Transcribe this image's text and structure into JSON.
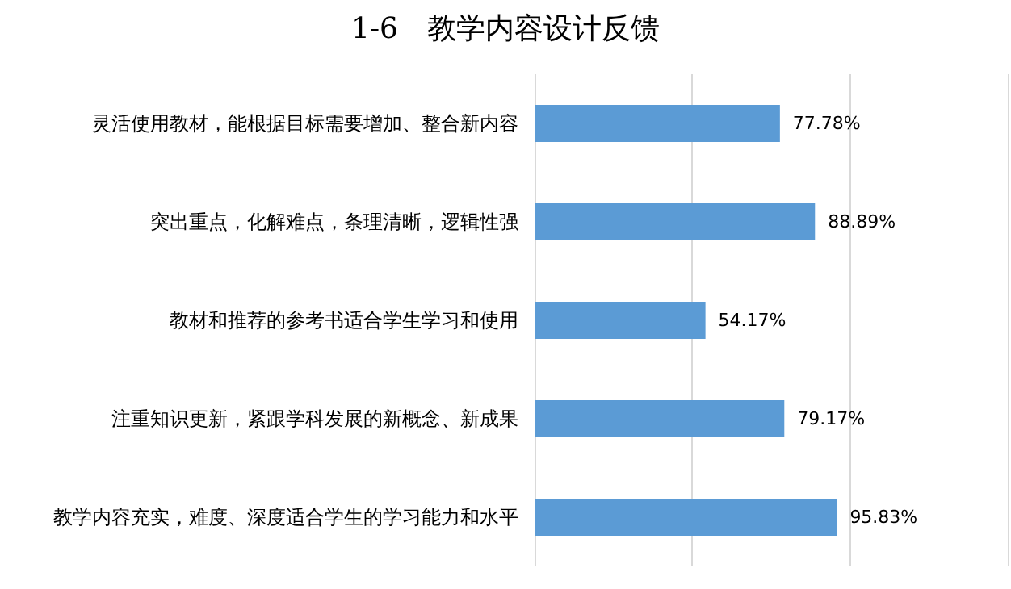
{
  "chart_data": {
    "type": "bar",
    "orientation": "horizontal",
    "title": "1-6　教学内容设计反馈",
    "categories": [
      "灵活使用教材，能根据目标需要增加、整合新内容",
      "突出重点，化解难点，条理清晰，逻辑性强",
      "教材和推荐的参考书适合学生学习和使用",
      "注重知识更新，紧跟学科发展的新概念、新成果",
      "教学内容充实，难度、深度适合学生的学习能力和水平"
    ],
    "values": [
      77.78,
      88.89,
      54.17,
      79.17,
      95.83
    ],
    "value_labels": [
      "77.78%",
      "88.89%",
      "54.17%",
      "79.17%",
      "95.83%"
    ],
    "color": "#5b9bd5",
    "xlim": [
      0,
      150
    ],
    "xticks": [
      {
        "value": 0,
        "label": null
      },
      {
        "value": 50,
        "label": null
      },
      {
        "value": 100,
        "label": null
      },
      {
        "value": 150,
        "label": null
      }
    ],
    "grid": "x",
    "tick_labels": "y"
  }
}
